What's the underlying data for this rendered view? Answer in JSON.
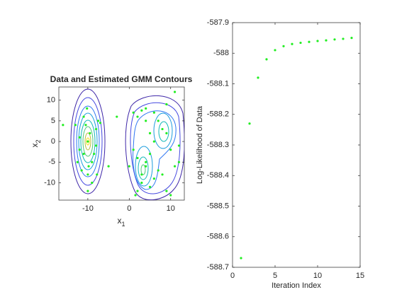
{
  "chart_data": [
    {
      "type": "scatter",
      "title": "Data and Estimated GMM Contours",
      "xlabel": {
        "base": "x",
        "sub": "1"
      },
      "ylabel": {
        "base": "x",
        "sub": "2"
      },
      "x": [
        -10,
        -9.5,
        -11,
        -10.5,
        -9,
        -12,
        -8,
        -7,
        -7.5,
        -10,
        -11.5,
        -9,
        -10,
        -13,
        -16,
        -12,
        -8.5,
        -9.8,
        -11,
        -10.2,
        -8,
        -12.5,
        -7.8,
        2,
        3,
        4,
        1,
        5,
        2,
        3,
        6,
        7,
        8,
        4,
        1.5,
        9,
        10,
        11,
        12,
        5,
        6,
        4,
        3,
        8,
        9,
        7,
        10,
        12,
        0,
        -5,
        -3,
        1,
        2,
        9,
        11,
        5,
        6,
        4
      ],
      "values": [
        0,
        2,
        -3,
        4,
        -5,
        1,
        3,
        4.5,
        5,
        -8,
        -7,
        -10,
        -12,
        4,
        4,
        -2,
        -3,
        -6,
        6,
        8,
        -1,
        -5,
        -8,
        -4,
        -8,
        -6,
        -2,
        -11,
        -12,
        -10,
        -9,
        -7,
        -8,
        -5,
        -13,
        -12,
        -13,
        -6,
        -5,
        2,
        7,
        8,
        7.5,
        3,
        2,
        5,
        -2,
        -1,
        -6,
        -6,
        6,
        7,
        6,
        9,
        12,
        -3,
        0,
        5
      ],
      "color": "#22ee22",
      "xlim": [
        -17,
        13.3
      ],
      "ylim": [
        -14.2,
        13.2
      ],
      "xticks": [
        -10,
        0,
        10
      ],
      "yticks": [
        -10,
        -5,
        0,
        5,
        10
      ]
    },
    {
      "type": "scatter",
      "xlabel": "Iteration Index",
      "ylabel": "Log-Likelihood of Data",
      "x": [
        1,
        2,
        3,
        4,
        5,
        6,
        7,
        8,
        9,
        10,
        11,
        12,
        13,
        14
      ],
      "values": [
        -588.67,
        -588.23,
        -588.08,
        -588.02,
        -587.99,
        -587.977,
        -587.97,
        -587.966,
        -587.963,
        -587.96,
        -587.958,
        -587.955,
        -587.953,
        -587.95
      ],
      "color": "#22ee22",
      "xlim": [
        0,
        15
      ],
      "ylim": [
        -588.7,
        -587.9
      ],
      "xticks": [
        0,
        5,
        10,
        15
      ],
      "yticks": [
        -588.7,
        -588.6,
        -588.5,
        -588.4,
        -588.3,
        -588.2,
        -588.1,
        -588,
        -587.9
      ]
    }
  ]
}
